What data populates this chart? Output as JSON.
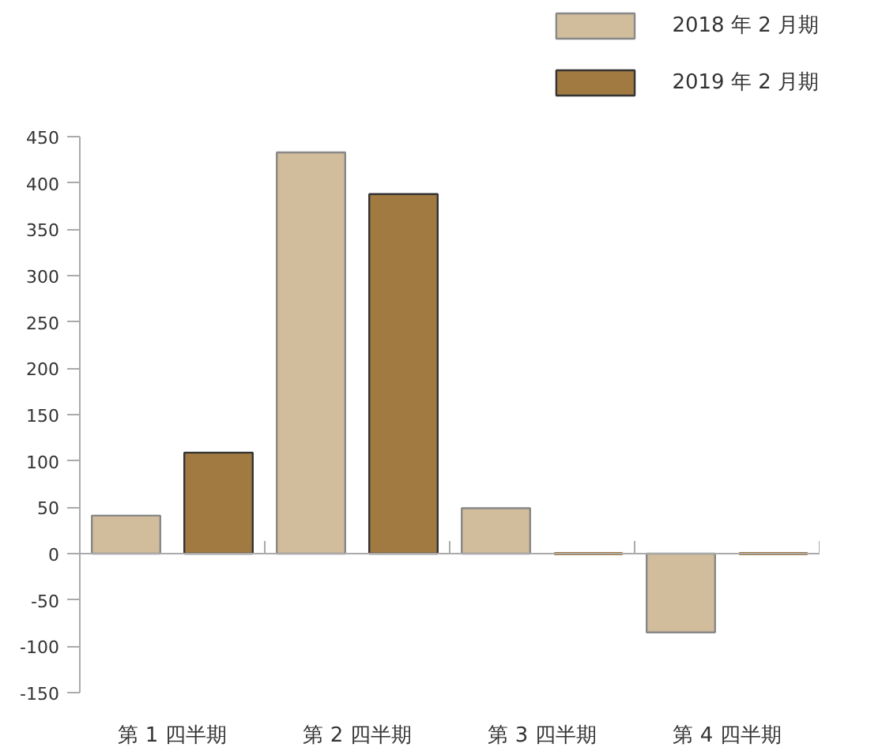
{
  "chart_data": {
    "type": "bar",
    "categories": [
      "第 1 四半期",
      "第 2 四半期",
      "第 3 四半期",
      "第 4 四半期"
    ],
    "series": [
      {
        "name": "2018 年 2 月期",
        "color": "#d1bc9c",
        "values": [
          41,
          433,
          49,
          -85
        ]
      },
      {
        "name": "2019 年 2 月期",
        "color": "#a17a41",
        "values": [
          109,
          388,
          0,
          0
        ]
      }
    ],
    "ylim": [
      -150,
      450
    ],
    "yticks": [
      -150,
      -100,
      -50,
      0,
      50,
      100,
      150,
      200,
      250,
      300,
      350,
      400,
      450
    ],
    "legend": "top right"
  }
}
